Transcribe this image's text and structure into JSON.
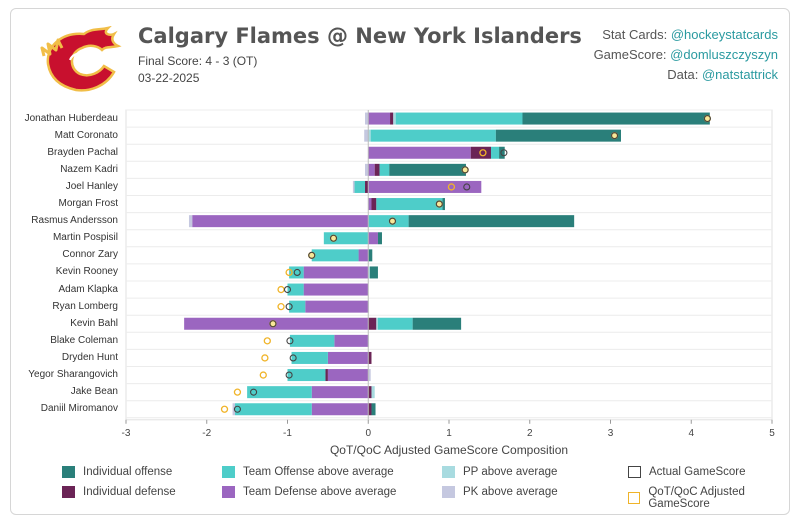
{
  "header": {
    "title": "Calgary Flames @ New York Islanders",
    "final_score": "Final Score: 4 - 3 (OT)",
    "date": "03-22-2025"
  },
  "credits": [
    {
      "label": "Stat Cards: ",
      "handle": "@hockeystatcards"
    },
    {
      "label": "GameScore: ",
      "handle": "@domluszczyszyn"
    },
    {
      "label": "Data: ",
      "handle": "@natstattrick"
    }
  ],
  "colors": {
    "individual_offense": "#2a7f7a",
    "individual_defense": "#6b2456",
    "team_offense": "#4ecdc9",
    "team_defense": "#9b66c0",
    "pp": "#a8dbe0",
    "pk": "#c5c8e0",
    "actual_marker": "#444444",
    "adjusted_marker": "#f0b429",
    "logo_red": "#c8102e",
    "logo_yellow": "#f1be48"
  },
  "chart_data": {
    "type": "bar",
    "orientation": "horizontal-stacked-diverging",
    "xlabel": "QoT/QoC Adjusted GameScore Composition",
    "xlim": [
      -3,
      5
    ],
    "xticks": [
      -3,
      -2,
      -1,
      0,
      1,
      2,
      3,
      4,
      5
    ],
    "grid": true,
    "legend_position": "bottom",
    "series": [
      {
        "name": "Individual offense",
        "key": "individual_offense"
      },
      {
        "name": "Individual defense",
        "key": "individual_defense"
      },
      {
        "name": "Team Offense above average",
        "key": "team_offense"
      },
      {
        "name": "Team Defense above average",
        "key": "team_defense"
      },
      {
        "name": "PP above average",
        "key": "pp"
      },
      {
        "name": "PK above average",
        "key": "pk"
      }
    ],
    "marker_series": [
      {
        "name": "Actual GameScore",
        "key": "actual"
      },
      {
        "name": "QoT/QoC Adjusted GameScore",
        "key": "adjusted"
      }
    ],
    "players": [
      {
        "name": "Jonathan Huberdeau",
        "pos": [
          [
            "team_defense",
            0.27
          ],
          [
            "individual_defense",
            0.04
          ],
          [
            "pp",
            0.03
          ],
          [
            "team_offense",
            1.57
          ],
          [
            "individual_offense",
            2.32
          ]
        ],
        "neg": [
          [
            "pk",
            0.04
          ]
        ],
        "actual": 4.2,
        "adjusted": 4.2
      },
      {
        "name": "Matt Coronato",
        "pos": [
          [
            "pp",
            0.03
          ],
          [
            "team_offense",
            1.55
          ],
          [
            "individual_offense",
            1.55
          ]
        ],
        "neg": [
          [
            "pk",
            0.05
          ]
        ],
        "actual": 3.05,
        "adjusted": 3.05
      },
      {
        "name": "Brayden Pachal",
        "pos": [
          [
            "team_defense",
            1.27
          ],
          [
            "individual_defense",
            0.25
          ],
          [
            "team_offense",
            0.1
          ],
          [
            "individual_offense",
            0.07
          ]
        ],
        "neg": [],
        "actual": 1.68,
        "adjusted": 1.42
      },
      {
        "name": "Nazem Kadri",
        "pos": [
          [
            "team_defense",
            0.08
          ],
          [
            "individual_defense",
            0.06
          ],
          [
            "team_offense",
            0.12
          ],
          [
            "individual_offense",
            0.95
          ]
        ],
        "neg": [
          [
            "pk",
            0.04
          ]
        ],
        "actual": 1.2,
        "adjusted": 1.2
      },
      {
        "name": "Joel Hanley",
        "pos": [
          [
            "team_defense",
            1.4
          ]
        ],
        "neg": [
          [
            "individual_defense",
            0.04
          ],
          [
            "team_offense",
            0.13
          ],
          [
            "pk",
            0.02
          ]
        ],
        "actual": 1.22,
        "adjusted": 1.03
      },
      {
        "name": "Morgan Frost",
        "pos": [
          [
            "team_defense",
            0.04
          ],
          [
            "individual_defense",
            0.06
          ],
          [
            "team_offense",
            0.82
          ],
          [
            "individual_offense",
            0.03
          ]
        ],
        "neg": [],
        "actual": 0.88,
        "adjusted": 0.88
      },
      {
        "name": "Rasmus Andersson",
        "pos": [
          [
            "team_offense",
            0.5
          ],
          [
            "individual_offense",
            2.05
          ]
        ],
        "neg": [
          [
            "team_defense",
            2.18
          ],
          [
            "pk",
            0.04
          ]
        ],
        "actual": 0.3,
        "adjusted": 0.3
      },
      {
        "name": "Martin Pospisil",
        "pos": [
          [
            "team_defense",
            0.12
          ],
          [
            "individual_offense",
            0.05
          ]
        ],
        "neg": [
          [
            "team_offense",
            0.55
          ]
        ],
        "actual": -0.43,
        "adjusted": -0.43
      },
      {
        "name": "Connor Zary",
        "pos": [
          [
            "individual_offense",
            0.05
          ]
        ],
        "neg": [
          [
            "team_defense",
            0.12
          ],
          [
            "team_offense",
            0.58
          ]
        ],
        "actual": -0.7,
        "adjusted": -0.7
      },
      {
        "name": "Kevin Rooney",
        "pos": [
          [
            "pp",
            0.02
          ],
          [
            "individual_offense",
            0.1
          ]
        ],
        "neg": [
          [
            "team_defense",
            0.8
          ],
          [
            "team_offense",
            0.18
          ]
        ],
        "actual": -0.88,
        "adjusted": -0.98
      },
      {
        "name": "Adam Klapka",
        "pos": [],
        "neg": [
          [
            "team_defense",
            0.8
          ],
          [
            "team_offense",
            0.2
          ]
        ],
        "actual": -1.0,
        "adjusted": -1.08
      },
      {
        "name": "Ryan Lomberg",
        "pos": [
          [
            "pk",
            0.01
          ]
        ],
        "neg": [
          [
            "team_defense",
            0.78
          ],
          [
            "team_offense",
            0.2
          ]
        ],
        "actual": -0.98,
        "adjusted": -1.08
      },
      {
        "name": "Kevin Bahl",
        "pos": [
          [
            "individual_defense",
            0.1
          ],
          [
            "pp",
            0.02
          ],
          [
            "team_offense",
            0.43
          ],
          [
            "individual_offense",
            0.6
          ]
        ],
        "neg": [
          [
            "team_defense",
            2.28
          ]
        ],
        "actual": -1.18,
        "adjusted": -1.18
      },
      {
        "name": "Blake Coleman",
        "pos": [
          [
            "pk",
            0.01
          ]
        ],
        "neg": [
          [
            "team_defense",
            0.42
          ],
          [
            "team_offense",
            0.55
          ]
        ],
        "actual": -0.97,
        "adjusted": -1.25
      },
      {
        "name": "Dryden Hunt",
        "pos": [
          [
            "individual_defense",
            0.04
          ]
        ],
        "neg": [
          [
            "team_defense",
            0.5
          ],
          [
            "team_offense",
            0.45
          ]
        ],
        "actual": -0.93,
        "adjusted": -1.28
      },
      {
        "name": "Yegor Sharangovich",
        "pos": [
          [
            "pk",
            0.03
          ]
        ],
        "neg": [
          [
            "team_defense",
            0.5
          ],
          [
            "individual_defense",
            0.03
          ],
          [
            "team_offense",
            0.47
          ]
        ],
        "actual": -0.98,
        "adjusted": -1.3
      },
      {
        "name": "Jake Bean",
        "pos": [
          [
            "individual_defense",
            0.04
          ],
          [
            "pp",
            0.04
          ]
        ],
        "neg": [
          [
            "team_defense",
            0.7
          ],
          [
            "team_offense",
            0.8
          ]
        ],
        "actual": -1.42,
        "adjusted": -1.62
      },
      {
        "name": "Daniil Miromanov",
        "pos": [
          [
            "individual_defense",
            0.04
          ],
          [
            "individual_offense",
            0.05
          ]
        ],
        "neg": [
          [
            "team_defense",
            0.7
          ],
          [
            "team_offense",
            0.95
          ],
          [
            "pk",
            0.03
          ]
        ],
        "actual": -1.62,
        "adjusted": -1.78
      }
    ]
  }
}
